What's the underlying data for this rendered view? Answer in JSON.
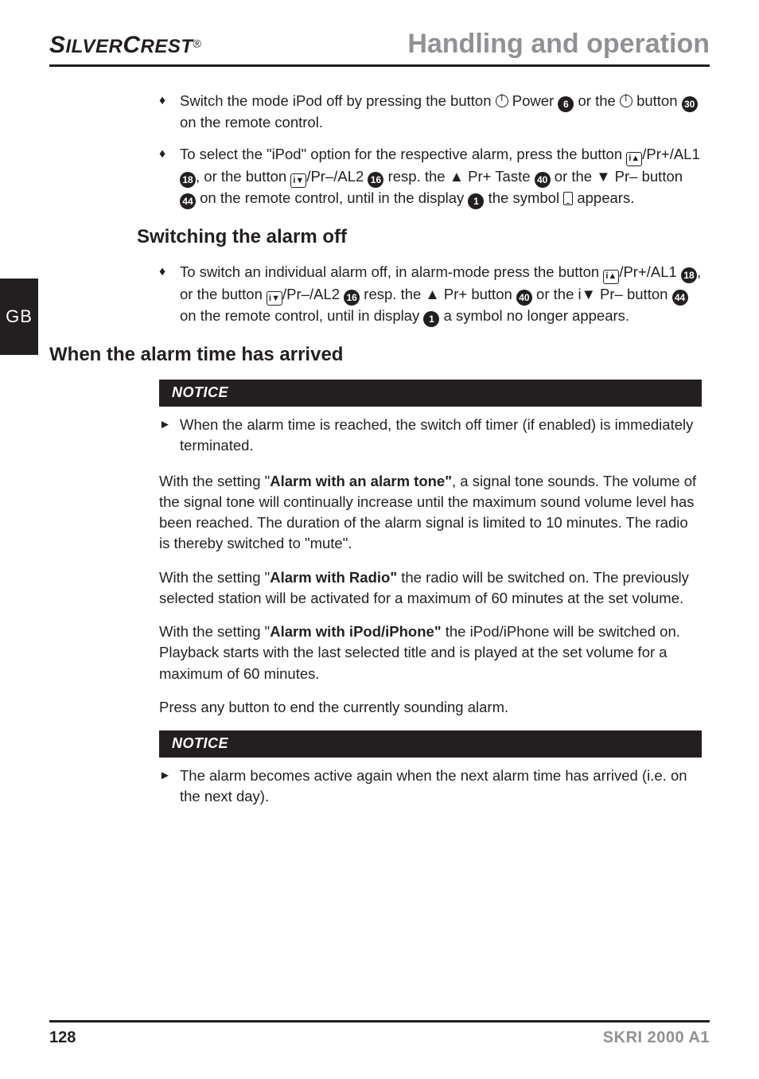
{
  "colors": {
    "text": "#231f20",
    "muted": "#8f9194",
    "bg": "#ffffff",
    "bar_bg": "#231f20",
    "bar_fg": "#ffffff"
  },
  "typography": {
    "body_pt": 18.5,
    "h2_pt": 24,
    "title_pt": 34,
    "line_height": 1.42
  },
  "header": {
    "brand_big": "S",
    "brand_rest1": "ILVER",
    "brand_big2": "C",
    "brand_rest2": "REST",
    "reg": "®",
    "title": "Handling and operation"
  },
  "side_tab": "GB",
  "bullets_top": [
    {
      "pre": "Switch the mode iPod off by pressing the button ",
      "ic1": "pwr",
      "mid1": " Power ",
      "circ1": "6",
      "mid2": " or the ",
      "ic2": "pwr",
      "mid3": " button ",
      "circ2": "30",
      "post": " on the remote control."
    },
    {
      "pre": "To select the \"iPod\" option for the respective alarm, press the button ",
      "box1": "i▲",
      "mid1": "/Pr+/AL1 ",
      "circ1": "18",
      "mid2": ", or the button ",
      "box2": "i▼",
      "mid3": "/Pr–/AL2 ",
      "circ2": "16",
      "mid4": " resp. the ▲ Pr+ Taste ",
      "circ3": "40",
      "mid5": " or the ▼ Pr– button ",
      "circ4": "44",
      "mid6": " on the remote control, until in the display ",
      "circ5": "1",
      "mid7": " the symbol ",
      "ic_phone": "phone",
      "post": " appears."
    }
  ],
  "h2_switch": "Switching the alarm off",
  "bullets_switch": [
    {
      "pre": "To switch an individual alarm off, in alarm-mode press the button ",
      "box1": "i▲",
      "mid1": "/Pr+/AL1 ",
      "circ1": "18",
      "mid2": ", or the button ",
      "box2": "i▼",
      "mid3": "/Pr–/AL2 ",
      "circ2": "16",
      "mid4": " resp. the ▲ Pr+ button ",
      "circ3": "40",
      "mid5": " or the i▼ Pr– button ",
      "circ4": "44",
      "mid6": " on the remote control, until in display ",
      "circ5": "1",
      "post": " a symbol no longer appears."
    }
  ],
  "h2_when": "When the alarm time has arrived",
  "notice_label": "NOTICE",
  "notice1": "When the alarm time is reached, the switch off timer (if enabled) is immediately terminated.",
  "para1_pre": "With the setting \"",
  "para1_bold": "Alarm with an alarm tone\"",
  "para1_post": ", a signal tone sounds. The volume of the signal tone will continually increase until the maximum sound volume level has been reached. The duration of the alarm signal is limited to 10 minutes. The radio is thereby switched to \"mute\".",
  "para2_pre": "With the setting \"",
  "para2_bold": "Alarm with Radio\"",
  "para2_post": " the radio will be switched on. The previously selected station will be activated for a maximum of 60 minutes at the set volume.",
  "para3_pre": "With the setting \"",
  "para3_bold": "Alarm with iPod/iPhone\"",
  "para3_post": " the iPod/iPhone will be switched on. Playback starts with the last selected title and is played at the set volume for a maximum of 60 minutes.",
  "para4": "Press any button to end the currently sounding alarm.",
  "notice2": "The alarm becomes active again when the next alarm time has arrived (i.e. on the next day).",
  "footer": {
    "page": "128",
    "model": "SKRI 2000 A1"
  }
}
